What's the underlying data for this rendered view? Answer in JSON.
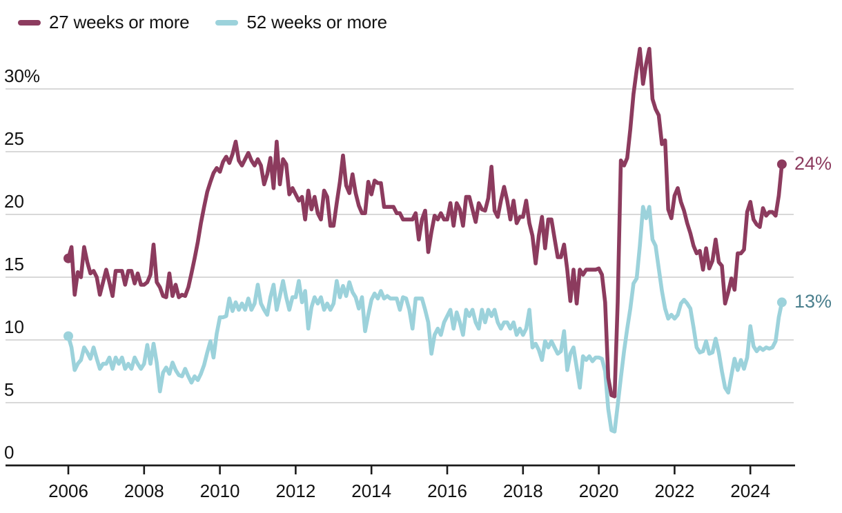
{
  "colors": {
    "background": "#ffffff",
    "grid": "#cccccc",
    "axis": "#1a1a1a",
    "text": "#121212",
    "maroon": "#8c3b5e",
    "teal_line": "#9cd2db",
    "teal_label": "#4a7f8d"
  },
  "legend": {
    "items": [
      {
        "label": "27 weeks or more",
        "color": "#8c3b5e"
      },
      {
        "label": "52 weeks or more",
        "color": "#9cd2db"
      }
    ]
  },
  "chart_data": {
    "type": "line",
    "title": "",
    "xlabel": "",
    "ylabel": "",
    "grid": true,
    "legend_position": "top-left",
    "x_domain": [
      2006,
      2024.917
    ],
    "ylim": [
      0,
      33.5
    ],
    "x_step_months": 1,
    "y_axis": {
      "ticks": [
        {
          "label": "30%",
          "value": 30
        },
        {
          "label": "25",
          "value": 25
        },
        {
          "label": "20",
          "value": 20
        },
        {
          "label": "15",
          "value": 15
        },
        {
          "label": "10",
          "value": 10
        },
        {
          "label": "5",
          "value": 5
        },
        {
          "label": "0",
          "value": 0
        }
      ]
    },
    "x_axis": {
      "ticks": [
        {
          "label": "2006",
          "value": 2006
        },
        {
          "label": "2008",
          "value": 2008
        },
        {
          "label": "2010",
          "value": 2010
        },
        {
          "label": "2012",
          "value": 2012
        },
        {
          "label": "2014",
          "value": 2014
        },
        {
          "label": "2016",
          "value": 2016
        },
        {
          "label": "2018",
          "value": 2018
        },
        {
          "label": "2020",
          "value": 2020
        },
        {
          "label": "2022",
          "value": 2022
        },
        {
          "label": "2024",
          "value": 2024
        }
      ]
    },
    "series": [
      {
        "id": "27-weeks",
        "name": "27 weeks or more",
        "color": "#8c3b5e",
        "label_color": "#8c3b5e",
        "end_label": "24%",
        "start_year": 2006,
        "values": [
          16.5,
          17.4,
          13.6,
          15.4,
          15.0,
          17.4,
          16.2,
          15.3,
          15.5,
          15.0,
          13.6,
          14.6,
          15.6,
          14.6,
          13.5,
          15.5,
          15.5,
          15.5,
          14.4,
          15.5,
          15.5,
          14.5,
          15.3,
          14.4,
          14.4,
          14.6,
          15.2,
          17.6,
          14.6,
          14.2,
          13.5,
          13.4,
          15.3,
          13.5,
          14.4,
          13.4,
          13.6,
          13.5,
          14.2,
          15.3,
          16.5,
          17.8,
          19.3,
          20.6,
          21.8,
          22.6,
          23.3,
          23.7,
          23.4,
          24.2,
          24.6,
          24.1,
          24.8,
          25.8,
          24.3,
          23.9,
          24.4,
          24.9,
          24.3,
          23.9,
          24.4,
          23.9,
          22.4,
          23.2,
          24.5,
          22.1,
          25.8,
          22.4,
          24.4,
          24.0,
          21.6,
          22.1,
          21.6,
          21.1,
          21.4,
          19.6,
          21.9,
          20.4,
          21.4,
          20.1,
          19.6,
          21.9,
          21.4,
          19.1,
          19.1,
          20.9,
          22.6,
          24.7,
          22.3,
          21.7,
          23.2,
          21.7,
          20.7,
          20.1,
          20.1,
          22.6,
          21.6,
          22.7,
          22.5,
          22.5,
          20.6,
          20.6,
          20.6,
          20.6,
          20.1,
          20.1,
          19.6,
          19.6,
          19.6,
          19.6,
          20.1,
          18.0,
          19.6,
          20.3,
          17.0,
          18.6,
          19.9,
          19.6,
          20.1,
          19.6,
          19.6,
          20.9,
          19.1,
          20.9,
          20.4,
          19.1,
          21.4,
          21.4,
          20.4,
          19.4,
          20.9,
          20.4,
          20.3,
          21.3,
          23.8,
          20.3,
          19.8,
          21.1,
          22.2,
          21.1,
          19.6,
          21.1,
          19.3,
          19.8,
          19.8,
          21.1,
          19.3,
          18.3,
          16.1,
          18.3,
          19.8,
          17.3,
          19.6,
          19.6,
          18.1,
          16.6,
          16.6,
          17.6,
          15.6,
          13.1,
          15.6,
          12.9,
          15.6,
          15.2,
          15.6,
          15.6,
          15.6,
          15.6,
          15.7,
          15.2,
          13.0,
          7.0,
          5.6,
          5.5,
          13.0,
          24.3,
          23.9,
          24.5,
          26.8,
          29.6,
          31.5,
          33.2,
          30.4,
          32.0,
          33.2,
          29.2,
          28.4,
          27.9,
          25.6,
          25.9,
          20.4,
          19.7,
          21.5,
          22.1,
          21.0,
          20.3,
          19.3,
          18.5,
          17.5,
          16.9,
          17.1,
          15.6,
          17.3,
          15.7,
          16.3,
          18.0,
          16.2,
          15.9,
          12.9,
          13.8,
          14.9,
          14.0,
          16.9,
          16.9,
          17.2,
          20.2,
          21.0,
          19.6,
          19.2,
          19.0,
          20.5,
          19.9,
          20.2,
          20.2,
          19.9,
          21.5,
          24.0
        ]
      },
      {
        "id": "52-weeks",
        "name": "52 weeks or more",
        "color": "#9cd2db",
        "label_color": "#4a7f8d",
        "end_label": "13%",
        "start_year": 2006,
        "values": [
          10.3,
          9.4,
          7.6,
          8.1,
          8.4,
          9.4,
          9.0,
          8.5,
          9.4,
          8.5,
          7.7,
          8.1,
          8.1,
          8.6,
          7.7,
          8.6,
          8.1,
          8.6,
          7.7,
          8.1,
          7.7,
          8.6,
          8.1,
          7.7,
          8.1,
          9.6,
          8.1,
          9.7,
          8.2,
          5.9,
          7.4,
          7.8,
          7.3,
          8.2,
          7.6,
          7.2,
          7.1,
          7.7,
          7.1,
          6.6,
          7.1,
          6.8,
          7.3,
          8.0,
          9.0,
          9.9,
          8.6,
          10.5,
          11.8,
          11.8,
          11.9,
          13.3,
          12.3,
          13.0,
          12.4,
          12.9,
          12.4,
          13.3,
          12.4,
          12.9,
          14.4,
          12.9,
          12.4,
          12.0,
          13.4,
          14.4,
          12.4,
          13.5,
          14.7,
          13.4,
          12.4,
          13.4,
          13.4,
          14.7,
          13.0,
          13.9,
          10.9,
          12.6,
          13.4,
          12.9,
          13.4,
          12.4,
          12.9,
          12.4,
          12.9,
          14.7,
          13.4,
          14.3,
          13.5,
          14.6,
          13.8,
          13.4,
          12.5,
          13.4,
          10.7,
          12.0,
          13.2,
          13.7,
          13.3,
          13.9,
          13.3,
          13.5,
          13.3,
          13.3,
          13.3,
          12.4,
          13.4,
          13.3,
          12.4,
          10.9,
          13.3,
          13.3,
          13.3,
          12.4,
          11.4,
          8.9,
          10.4,
          10.9,
          10.4,
          11.4,
          11.9,
          12.4,
          10.9,
          12.2,
          11.4,
          10.4,
          12.4,
          11.9,
          12.4,
          11.4,
          10.9,
          12.4,
          11.4,
          12.4,
          11.9,
          12.4,
          11.4,
          10.9,
          11.4,
          11.4,
          10.9,
          11.4,
          10.4,
          10.9,
          10.4,
          10.9,
          12.4,
          9.4,
          9.7,
          9.2,
          8.4,
          9.9,
          9.4,
          9.9,
          9.4,
          8.9,
          9.1,
          10.7,
          7.6,
          8.9,
          9.4,
          7.8,
          6.2,
          8.7,
          8.4,
          8.7,
          8.3,
          8.6,
          8.6,
          8.5,
          7.5,
          4.5,
          2.8,
          2.7,
          4.8,
          7.0,
          9.1,
          10.9,
          12.5,
          14.5,
          14.9,
          17.5,
          20.6,
          19.7,
          20.6,
          18.0,
          17.5,
          15.7,
          13.9,
          12.5,
          11.7,
          12.0,
          11.7,
          12.0,
          12.9,
          13.2,
          12.9,
          12.5,
          11.0,
          9.4,
          9.0,
          9.1,
          9.9,
          8.9,
          9.0,
          10.1,
          9.0,
          7.5,
          6.2,
          5.8,
          7.2,
          8.5,
          7.6,
          8.4,
          7.7,
          8.6,
          11.1,
          9.5,
          9.1,
          9.4,
          9.2,
          9.4,
          9.3,
          9.4,
          9.9,
          11.8,
          13.0
        ]
      }
    ]
  }
}
